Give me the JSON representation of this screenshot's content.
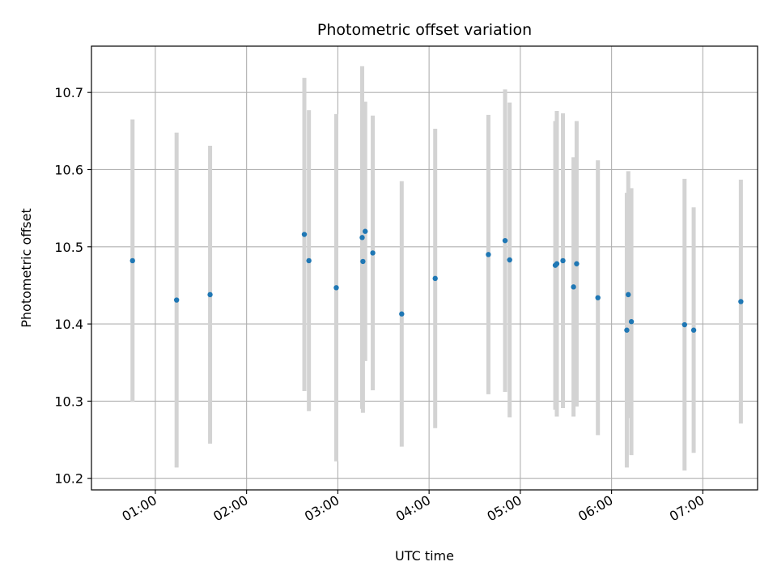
{
  "chart_data": {
    "type": "scatter",
    "title": "Photometric offset variation",
    "xlabel": "UTC time",
    "ylabel": "Photometric offset",
    "x_unit": "hours",
    "xlim": [
      0.3,
      7.6
    ],
    "ylim": [
      10.185,
      10.76
    ],
    "xticks": [
      {
        "value": 1,
        "label": "01:00"
      },
      {
        "value": 2,
        "label": "02:00"
      },
      {
        "value": 3,
        "label": "03:00"
      },
      {
        "value": 4,
        "label": "04:00"
      },
      {
        "value": 5,
        "label": "05:00"
      },
      {
        "value": 6,
        "label": "06:00"
      },
      {
        "value": 7,
        "label": "07:00"
      }
    ],
    "yticks": [
      {
        "value": 10.2,
        "label": "10.2"
      },
      {
        "value": 10.3,
        "label": "10.3"
      },
      {
        "value": 10.4,
        "label": "10.4"
      },
      {
        "value": 10.5,
        "label": "10.5"
      },
      {
        "value": 10.6,
        "label": "10.6"
      },
      {
        "value": 10.7,
        "label": "10.7"
      }
    ],
    "grid": true,
    "marker_color": "#1f77b4",
    "errorbar_color": "#d3d3d3",
    "points": [
      {
        "x": 0.75,
        "y": 10.482,
        "yerr": 0.183
      },
      {
        "x": 1.233,
        "y": 10.431,
        "yerr": 0.217
      },
      {
        "x": 1.6,
        "y": 10.438,
        "yerr": 0.193
      },
      {
        "x": 2.633,
        "y": 10.516,
        "yerr": 0.203
      },
      {
        "x": 2.683,
        "y": 10.482,
        "yerr": 0.195
      },
      {
        "x": 2.983,
        "y": 10.447,
        "yerr": 0.225
      },
      {
        "x": 3.267,
        "y": 10.512,
        "yerr": 0.222
      },
      {
        "x": 3.275,
        "y": 10.481,
        "yerr": 0.196
      },
      {
        "x": 3.3,
        "y": 10.52,
        "yerr": 0.168
      },
      {
        "x": 3.383,
        "y": 10.492,
        "yerr": 0.178
      },
      {
        "x": 3.7,
        "y": 10.413,
        "yerr": 0.172
      },
      {
        "x": 4.067,
        "y": 10.459,
        "yerr": 0.194
      },
      {
        "x": 4.65,
        "y": 10.49,
        "yerr": 0.181
      },
      {
        "x": 4.833,
        "y": 10.508,
        "yerr": 0.196
      },
      {
        "x": 4.883,
        "y": 10.483,
        "yerr": 0.204
      },
      {
        "x": 5.383,
        "y": 10.476,
        "yerr": 0.187
      },
      {
        "x": 5.4,
        "y": 10.478,
        "yerr": 0.198
      },
      {
        "x": 5.467,
        "y": 10.482,
        "yerr": 0.191
      },
      {
        "x": 5.583,
        "y": 10.448,
        "yerr": 0.168
      },
      {
        "x": 5.617,
        "y": 10.478,
        "yerr": 0.185
      },
      {
        "x": 5.85,
        "y": 10.434,
        "yerr": 0.178
      },
      {
        "x": 6.167,
        "y": 10.392,
        "yerr": 0.178
      },
      {
        "x": 6.183,
        "y": 10.438,
        "yerr": 0.16
      },
      {
        "x": 6.217,
        "y": 10.403,
        "yerr": 0.173
      },
      {
        "x": 6.8,
        "y": 10.399,
        "yerr": 0.189
      },
      {
        "x": 6.9,
        "y": 10.392,
        "yerr": 0.159
      },
      {
        "x": 7.417,
        "y": 10.429,
        "yerr": 0.158
      }
    ]
  }
}
